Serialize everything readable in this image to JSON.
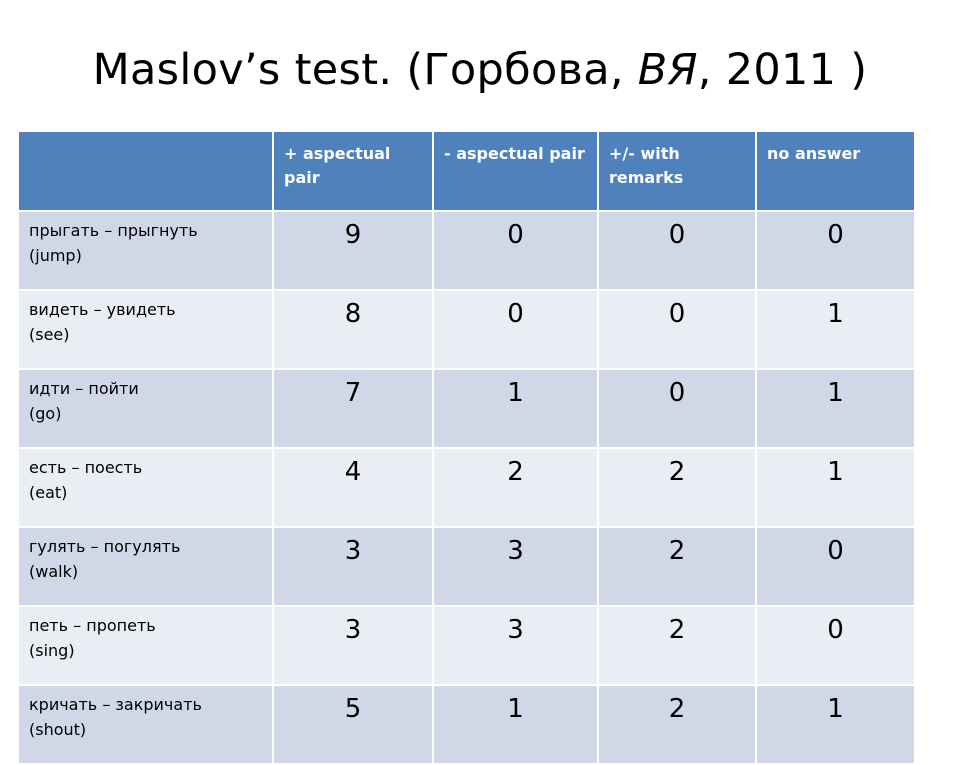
{
  "slide": {
    "title_main": "Maslov’s test. (Горбова, ",
    "title_italic": "ВЯ",
    "title_end": ", 2011 )"
  },
  "table": {
    "headers": [
      "",
      "+ aspectual pair",
      "- aspectual pair",
      "+/- with remarks",
      "no answer"
    ],
    "rows": [
      {
        "verb": "прыгать – прыгнуть",
        "gloss": "(jump)",
        "values": [
          "9",
          "0",
          "0",
          "0"
        ]
      },
      {
        "verb": "видеть – увидеть",
        "gloss": "(see)",
        "values": [
          "8",
          "0",
          "0",
          "1"
        ]
      },
      {
        "verb": "идти – пойти",
        "gloss": "(go)",
        "values": [
          "7",
          "1",
          "0",
          "1"
        ]
      },
      {
        "verb": "есть – поесть",
        "gloss": "(eat)",
        "values": [
          "4",
          "2",
          "2",
          "1"
        ]
      },
      {
        "verb": "гулять – погулять",
        "gloss": "(walk)",
        "values": [
          "3",
          "3",
          "2",
          "0"
        ]
      },
      {
        "verb": "петь – пропеть",
        "gloss": "(sing)",
        "values": [
          "3",
          "3",
          "2",
          "0"
        ]
      },
      {
        "verb": "кричать – закричать",
        "gloss": "(shout)",
        "values": [
          "5",
          "1",
          "2",
          "1"
        ]
      }
    ]
  },
  "colors": {
    "header_bg": "#4f81bd",
    "row_dark": "#d0d8e8",
    "row_light": "#e9edf4"
  }
}
